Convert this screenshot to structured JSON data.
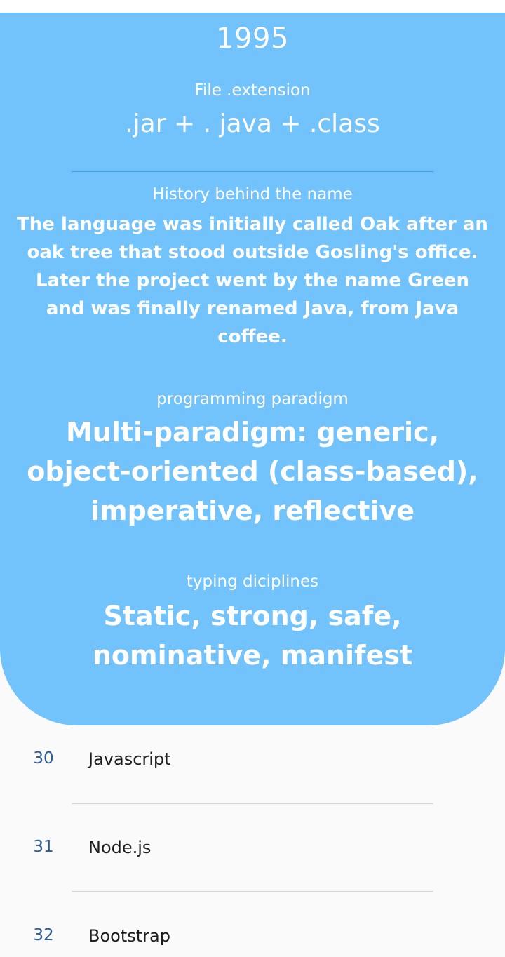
{
  "detail": {
    "year": "1995",
    "extension_label": "File .extension",
    "extension_value": ".jar + . java + .class",
    "history_label": "History behind the name",
    "history_value": "The language was initially called Oak after an oak tree that stood outside Gosling's office. Later the project went by the name Green and was finally renamed Java, from Java coffee.",
    "paradigm_label": "programming paradigm",
    "paradigm_value": "Multi-paradigm: generic, object-oriented (class-based), imperative, reflective",
    "typing_label": "typing diciplines",
    "typing_value": "Static, strong, safe, nominative, manifest"
  },
  "list": {
    "items": [
      {
        "number": "30",
        "name": "Javascript"
      },
      {
        "number": "31",
        "name": "Node.js"
      },
      {
        "number": "32",
        "name": "Bootstrap"
      }
    ]
  },
  "colors": {
    "card_background": "#72c2fb",
    "number_text": "#2c5a94"
  }
}
